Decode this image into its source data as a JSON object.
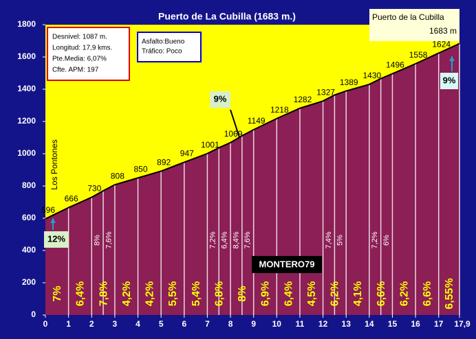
{
  "chart_data": {
    "type": "profile",
    "title": "Puerto de La Cubilla (1683 m.)",
    "x": [
      0,
      1,
      2,
      2.5,
      3,
      4,
      5,
      6,
      7,
      7.5,
      8,
      8.5,
      9,
      10,
      11,
      12,
      12.5,
      13,
      14,
      14.5,
      15,
      16,
      17,
      17.9
    ],
    "values": [
      596,
      666,
      730,
      770,
      808,
      850,
      892,
      947,
      1001,
      1037,
      1069,
      1111,
      1149,
      1218,
      1282,
      1327,
      1364,
      1389,
      1430,
      1466,
      1496,
      1558,
      1624,
      1683
    ],
    "xlim": [
      0,
      17.9
    ],
    "ylim": [
      0,
      1800
    ],
    "xticks": [
      0,
      1,
      2,
      3,
      4,
      5,
      6,
      7,
      8,
      9,
      10,
      11,
      12,
      13,
      14,
      15,
      16,
      17,
      {
        "value": 17.9,
        "label": "17,9"
      }
    ],
    "yticks": [
      0,
      200,
      400,
      600,
      800,
      1000,
      1200,
      1400,
      1600,
      1800
    ],
    "colors": {
      "sky": "#ffff00",
      "fill": "#8c1f55",
      "line": "#000000",
      "gradient": "#ffff00",
      "half": "#ffffff"
    },
    "segments": [
      {
        "label": "7%"
      },
      {
        "label": "6,4%"
      },
      {
        "label": "7,8%",
        "halves": [
          "8%",
          "7,6%"
        ]
      },
      {
        "label": "4,2%"
      },
      {
        "label": "4,2%"
      },
      {
        "label": "5,5%"
      },
      {
        "label": "5,4%"
      },
      {
        "label": "6,8%",
        "halves": [
          "7,2%",
          "6,4%"
        ]
      },
      {
        "label": "8%",
        "halves": [
          "8,4%",
          "7,6%"
        ]
      },
      {
        "label": "6,9%"
      },
      {
        "label": "6,4%"
      },
      {
        "label": "4,5%"
      },
      {
        "label": "6,2%",
        "halves": [
          "7,4%",
          "5%"
        ]
      },
      {
        "label": "4,1%"
      },
      {
        "label": "6,6%",
        "halves": [
          "7,2%",
          "6%"
        ]
      },
      {
        "label": "6,2%"
      },
      {
        "label": "6,6%"
      },
      {
        "label": "6,55%"
      }
    ],
    "summit": {
      "name": "Puerto de la Cubilla",
      "label": "1683 m"
    },
    "start_name": "Los Pontones",
    "info": [
      "Desnivel: 1087 m.",
      "Longitud: 17,9 kms.",
      "Pte.Media: 6,07%",
      "Cfte. APM: 197"
    ],
    "road": [
      "Asfalto:Bueno",
      "Tráfico: Poco"
    ],
    "max_labels": [
      "12%",
      "9%",
      "9%"
    ],
    "watermark": "MONTERO79"
  }
}
